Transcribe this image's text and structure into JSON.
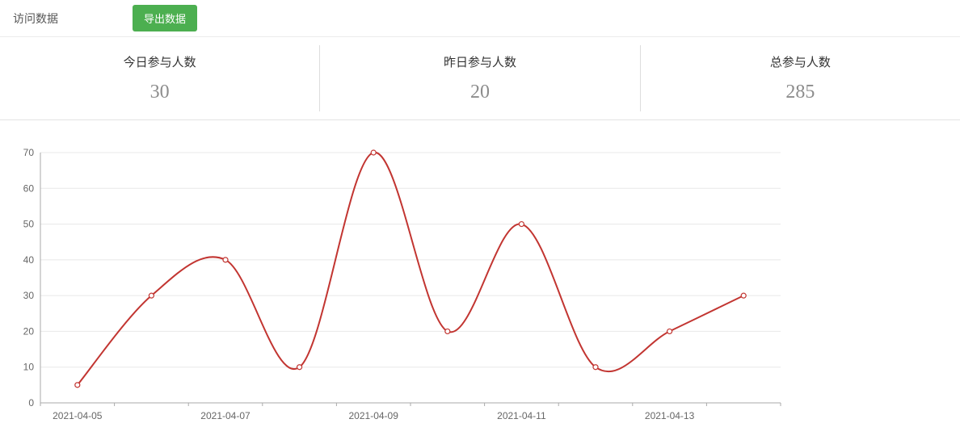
{
  "header": {
    "title": "访问数据",
    "export_button": "导出数据"
  },
  "stats": [
    {
      "label": "今日参与人数",
      "value": "30"
    },
    {
      "label": "昨日参与人数",
      "value": "20"
    },
    {
      "label": "总参与人数",
      "value": "285"
    }
  ],
  "chart_data": {
    "type": "line",
    "title": "",
    "x": [
      "2021-04-05",
      "2021-04-06",
      "2021-04-07",
      "2021-04-08",
      "2021-04-09",
      "2021-04-10",
      "2021-04-11",
      "2021-04-12",
      "2021-04-13",
      "2021-04-14"
    ],
    "values": [
      5,
      30,
      40,
      10,
      70,
      20,
      50,
      10,
      20,
      30
    ],
    "x_tick_labels": [
      "2021-04-05",
      "2021-04-07",
      "2021-04-09",
      "2021-04-11",
      "2021-04-13"
    ],
    "y_ticks": [
      0,
      10,
      20,
      30,
      40,
      50,
      60,
      70
    ],
    "ylim": [
      0,
      70
    ],
    "smooth": true,
    "grid": true,
    "legend": "none",
    "line_color": "#c23531",
    "marker_fill": "#ffffff",
    "axis_color": "#aaaaaa",
    "grid_color": "#e8e8e8",
    "label_color": "#666666"
  },
  "colors": {
    "accent_green": "#4caf50",
    "line_red": "#c23531"
  }
}
